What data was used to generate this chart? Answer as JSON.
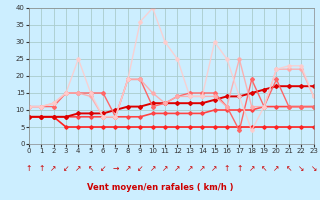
{
  "xlabel": "Vent moyen/en rafales ( km/h )",
  "ylim": [
    0,
    40
  ],
  "xlim": [
    0,
    23
  ],
  "yticks": [
    0,
    5,
    10,
    15,
    20,
    25,
    30,
    35,
    40
  ],
  "xticks": [
    0,
    1,
    2,
    3,
    4,
    5,
    6,
    7,
    8,
    9,
    10,
    11,
    12,
    13,
    14,
    15,
    16,
    17,
    18,
    19,
    20,
    21,
    22,
    23
  ],
  "bg_color": "#cceeff",
  "grid_color": "#aacccc",
  "series": [
    {
      "x": [
        0,
        1,
        2,
        3,
        4,
        5,
        6,
        7,
        8,
        9,
        10,
        11,
        12,
        13,
        14,
        15,
        16,
        17,
        18,
        19,
        20,
        21,
        22,
        23
      ],
      "y": [
        8,
        8,
        8,
        5,
        5,
        5,
        5,
        5,
        5,
        5,
        5,
        5,
        5,
        5,
        5,
        5,
        5,
        5,
        5,
        5,
        5,
        5,
        5,
        5
      ],
      "color": "#ff2222",
      "lw": 1.2,
      "marker": "D",
      "ms": 1.8,
      "ls": "-",
      "alpha": 1.0
    },
    {
      "x": [
        0,
        1,
        2,
        3,
        4,
        5,
        6,
        7,
        8,
        9,
        10,
        11,
        12,
        13,
        14,
        15,
        16,
        17,
        18,
        19,
        20,
        21,
        22,
        23
      ],
      "y": [
        8,
        8,
        8,
        8,
        8,
        8,
        8,
        8,
        8,
        8,
        9,
        9,
        9,
        9,
        9,
        10,
        10,
        10,
        10,
        11,
        11,
        11,
        11,
        11
      ],
      "color": "#ff4444",
      "lw": 1.2,
      "marker": "D",
      "ms": 1.8,
      "ls": "-",
      "alpha": 1.0
    },
    {
      "x": [
        0,
        1,
        2,
        3,
        4,
        5,
        6,
        7,
        8,
        9,
        10,
        11,
        12,
        13,
        14,
        15,
        16,
        17,
        18,
        19,
        20,
        21,
        22,
        23
      ],
      "y": [
        8,
        8,
        8,
        8,
        9,
        9,
        9,
        10,
        11,
        11,
        12,
        12,
        12,
        12,
        12,
        13,
        14,
        14,
        15,
        16,
        17,
        17,
        17,
        17
      ],
      "color": "#dd0000",
      "lw": 1.4,
      "marker": "D",
      "ms": 2.0,
      "ls": "-",
      "alpha": 1.0
    },
    {
      "x": [
        0,
        1,
        2,
        3,
        4,
        5,
        6,
        7,
        8,
        9,
        10,
        11,
        12,
        13,
        14,
        15,
        16,
        17,
        18,
        19,
        20,
        21,
        22,
        23
      ],
      "y": [
        11,
        11,
        11,
        15,
        15,
        15,
        15,
        8,
        19,
        19,
        11,
        12,
        14,
        15,
        15,
        15,
        11,
        4,
        19,
        11,
        19,
        11,
        11,
        11
      ],
      "color": "#ff6666",
      "lw": 1.0,
      "marker": "D",
      "ms": 2.0,
      "ls": "-",
      "alpha": 1.0
    },
    {
      "x": [
        0,
        1,
        2,
        3,
        4,
        5,
        6,
        7,
        8,
        9,
        10,
        11,
        12,
        13,
        14,
        15,
        16,
        17,
        18,
        19,
        20,
        21,
        22,
        23
      ],
      "y": [
        11,
        11,
        12,
        15,
        15,
        14,
        8,
        8,
        19,
        19,
        15,
        12,
        14,
        14,
        14,
        14,
        11,
        25,
        11,
        11,
        22,
        22,
        22,
        14
      ],
      "color": "#ffaaaa",
      "lw": 1.0,
      "marker": "D",
      "ms": 2.0,
      "ls": "-",
      "alpha": 0.9
    },
    {
      "x": [
        0,
        1,
        2,
        3,
        4,
        5,
        6,
        7,
        8,
        9,
        10,
        11,
        12,
        13,
        14,
        15,
        16,
        17,
        18,
        19,
        20,
        21,
        22,
        23
      ],
      "y": [
        11,
        11,
        12,
        15,
        25,
        15,
        8,
        8,
        19,
        36,
        40,
        30,
        25,
        14,
        14,
        30,
        25,
        14,
        4,
        11,
        22,
        23,
        23,
        14
      ],
      "color": "#ffcccc",
      "lw": 1.0,
      "marker": "D",
      "ms": 2.0,
      "ls": "-",
      "alpha": 0.85
    }
  ],
  "wind_arrows": [
    "↑",
    "↑",
    "↗",
    "↙",
    "↗",
    "↖",
    "↙",
    "→",
    "↗",
    "↙",
    "↗",
    "↗",
    "↗",
    "↗",
    "↗",
    "↗",
    "↑",
    "↑",
    "↗",
    "↖",
    "↗",
    "↖",
    "↘",
    "↘"
  ],
  "arrow_fontsize": 5.5,
  "xlabel_fontsize": 6.0,
  "tick_fontsize": 5.0
}
